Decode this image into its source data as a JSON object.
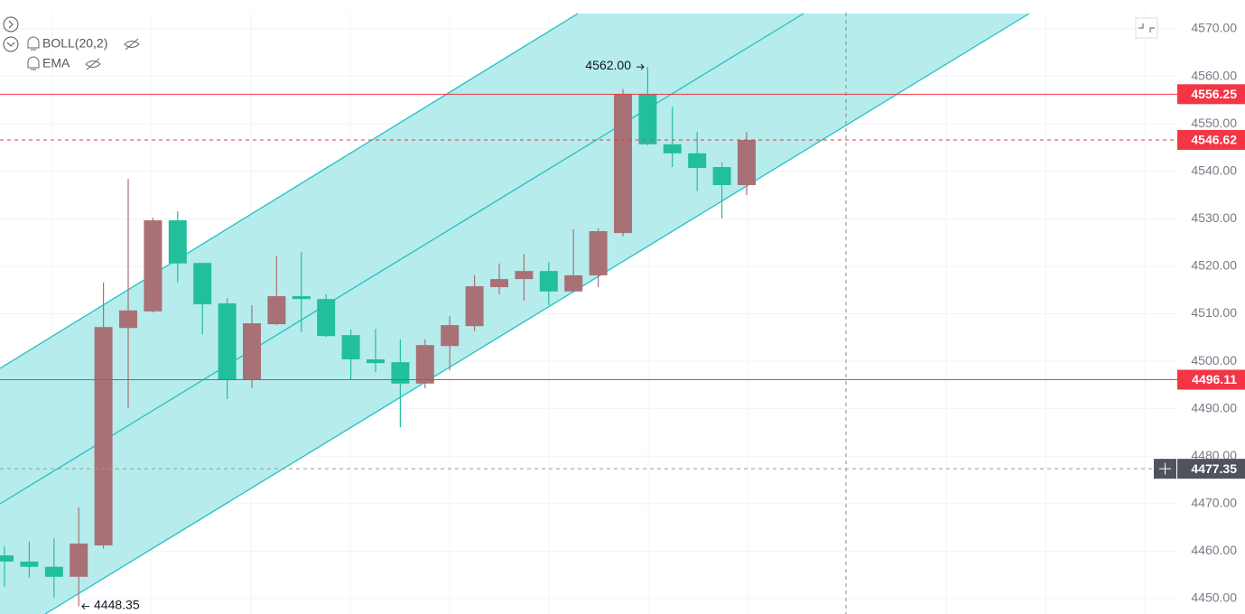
{
  "chart_data": {
    "type": "candlestick",
    "indicators": [
      "BOLL(20,2)",
      "EMA"
    ],
    "up_color": "#a87176",
    "down_color": "#22bf9d",
    "series": {
      "open": [
        4459.1,
        4457.8,
        4456.7,
        4454.6,
        4461.2,
        4507.0,
        4510.5,
        4529.7,
        4520.7,
        4512.2,
        4496.2,
        4507.8,
        4513.7,
        4513.1,
        4505.5,
        4500.4,
        4499.8,
        4495.3,
        4503.2,
        4507.4,
        4515.6,
        4517.3,
        4519.0,
        4514.7,
        4518.1,
        4527.0,
        4556.3,
        4545.7,
        4543.8,
        4540.9,
        4537.1
      ],
      "high": [
        4461.0,
        4462.0,
        4462.7,
        4469.2,
        4516.6,
        4538.4,
        4530.2,
        4531.6,
        4520.7,
        4513.3,
        4511.8,
        4522.1,
        4523.0,
        4514.1,
        4506.7,
        4506.8,
        4504.6,
        4504.6,
        4509.5,
        4518.1,
        4520.6,
        4522.6,
        4520.9,
        4527.8,
        4528.0,
        4557.3,
        4562.0,
        4553.6,
        4548.3,
        4541.9,
        4548.3
      ],
      "low": [
        4452.5,
        4454.4,
        4450.2,
        4448.35,
        4460.5,
        4490.1,
        4510.3,
        4516.6,
        4505.7,
        4492.0,
        4494.3,
        4507.6,
        4506.1,
        4505.1,
        4496.2,
        4497.7,
        4486.1,
        4494.3,
        4498.1,
        4506.3,
        4514.1,
        4512.8,
        4511.8,
        4514.5,
        4515.6,
        4526.3,
        4545.5,
        4540.9,
        4535.8,
        4530.1,
        4535.0
      ],
      "close": [
        4457.8,
        4456.7,
        4454.6,
        4461.6,
        4507.2,
        4510.7,
        4529.7,
        4520.6,
        4512.0,
        4496.2,
        4508.0,
        4513.7,
        4513.1,
        4505.3,
        4500.4,
        4499.6,
        4495.3,
        4503.4,
        4507.6,
        4515.8,
        4517.3,
        4519.0,
        4514.7,
        4518.1,
        4527.4,
        4556.3,
        4545.7,
        4543.8,
        4540.7,
        4537.1,
        4546.62
      ]
    },
    "ylim": [
      4446.76,
      4576.09
    ],
    "yticks": [
      {
        "value": 4450,
        "label": "4450.00"
      },
      {
        "value": 4460,
        "label": "4460.00"
      },
      {
        "value": 4470,
        "label": "4470.00"
      },
      {
        "value": 4480,
        "label": "4480.00"
      },
      {
        "value": 4490,
        "label": "4490.00"
      },
      {
        "value": 4500,
        "label": "4500.00"
      },
      {
        "value": 4510,
        "label": "4510.00"
      },
      {
        "value": 4520,
        "label": "4520.00"
      },
      {
        "value": 4530,
        "label": "4530.00"
      },
      {
        "value": 4540,
        "label": "4540.00"
      },
      {
        "value": 4550,
        "label": "4550.00"
      },
      {
        "value": 4560,
        "label": "4560.00"
      },
      {
        "value": 4570,
        "label": "4570.00"
      }
    ],
    "grid": true,
    "hlines": [
      {
        "value": 4556.25,
        "color": "#f23645",
        "style": "solid"
      },
      {
        "value": 4546.62,
        "color": "#f23645",
        "style": "dashed"
      },
      {
        "value": 4496.11,
        "color": "#f23645",
        "style": "solid"
      },
      {
        "value": 4477.35,
        "color": "#50535e",
        "style": "crosshair"
      }
    ],
    "high_marker": {
      "value": 4562,
      "label": "4562.00"
    },
    "low_marker": 4448.35
  }
}
